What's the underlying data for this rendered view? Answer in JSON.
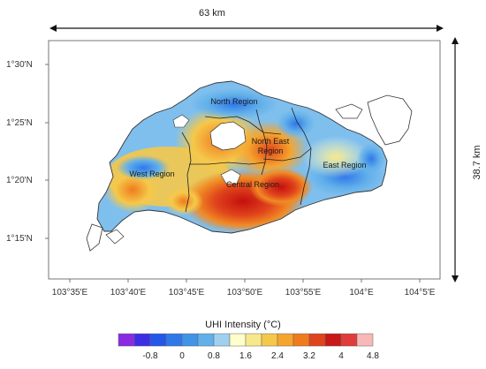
{
  "scale_bars": {
    "horizontal": "63 km",
    "vertical": "38.7 km"
  },
  "latitude_labels": [
    "1°30'N",
    "1°25'N",
    "1°20'N",
    "1°15'N"
  ],
  "longitude_labels": [
    "103°35'E",
    "103°40'E",
    "103°45'E",
    "103°50'E",
    "103°55'E",
    "104°E",
    "104°5'E"
  ],
  "regions": [
    {
      "name": "North Region",
      "color": "#3a8fe0"
    },
    {
      "name": "North East Region",
      "color": "#f08a24"
    },
    {
      "name": "East Region",
      "color": "#f6e27a"
    },
    {
      "name": "West Region",
      "color": "#4aa6e6"
    },
    {
      "name": "Central Region",
      "color": "#d81818"
    }
  ],
  "legend": {
    "title": "UHI Intensity (°C)",
    "colors": [
      "#8a2be2",
      "#3d2ee6",
      "#2457e8",
      "#2f78ea",
      "#3f94e8",
      "#62b0ea",
      "#9fd0f0",
      "#ffffcc",
      "#f7e98a",
      "#f5c84a",
      "#f5a52e",
      "#f07b1e",
      "#e0441c",
      "#c81818",
      "#e03c3c",
      "#f8b8b8"
    ],
    "tick_labels": [
      "-0.8",
      "0",
      "0.8",
      "1.6",
      "2.4",
      "3.2",
      "4",
      "4.8"
    ]
  }
}
